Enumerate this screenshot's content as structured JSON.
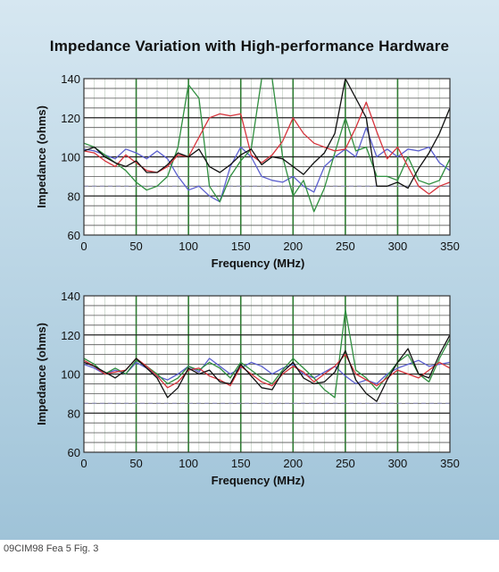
{
  "figure": {
    "title": "Impedance Variation with High-performance Hardware",
    "footer": "09CIM98 Fea 5 Fig. 3"
  },
  "colors": {
    "blue": "#5b5fcf",
    "green": "#2f8f3f",
    "red": "#d6343c",
    "black": "#111111",
    "grid": "#2e7d32",
    "dashed": "#8a8ab0",
    "panel": "#c6dcea"
  },
  "chart_data": [
    {
      "type": "line",
      "title": "Impedance Variation with High-performance Hardware",
      "xlabel": "Frequency (MHz)",
      "ylabel": "Impedance (ohms)",
      "xlim": [
        0,
        350
      ],
      "ylim": [
        60,
        140
      ],
      "x_ticks": [
        0,
        50,
        100,
        150,
        200,
        250,
        300,
        350
      ],
      "y_ticks": [
        60,
        80,
        100,
        120,
        140
      ],
      "grid": true,
      "reference_line": 85,
      "x": [
        0,
        10,
        20,
        30,
        40,
        50,
        60,
        70,
        80,
        90,
        100,
        110,
        120,
        130,
        140,
        150,
        160,
        170,
        180,
        190,
        200,
        210,
        220,
        230,
        240,
        250,
        260,
        270,
        280,
        290,
        300,
        310,
        320,
        330,
        340,
        350
      ],
      "series": [
        {
          "color": "#5b5fcf",
          "values": [
            104,
            103,
            101,
            99,
            104,
            102,
            99,
            103,
            99,
            90,
            83,
            85,
            80,
            77,
            95,
            105,
            100,
            90,
            88,
            87,
            90,
            85,
            82,
            95,
            100,
            104,
            100,
            115,
            100,
            104,
            100,
            104,
            103,
            105,
            97,
            93
          ]
        },
        {
          "color": "#2f8f3f",
          "values": [
            107,
            105,
            101,
            97,
            93,
            87,
            83,
            85,
            90,
            105,
            137,
            130,
            85,
            77,
            90,
            98,
            104,
            140,
            140,
            100,
            80,
            88,
            72,
            84,
            102,
            120,
            103,
            105,
            90,
            90,
            88,
            100,
            88,
            86,
            88,
            99
          ]
        },
        {
          "color": "#d6343c",
          "values": [
            103,
            102,
            98,
            95,
            101,
            97,
            93,
            92,
            95,
            101,
            100,
            110,
            120,
            122,
            121,
            122,
            101,
            97,
            101,
            108,
            120,
            112,
            107,
            105,
            103,
            104,
            115,
            128,
            113,
            99,
            105,
            95,
            85,
            81,
            85,
            87
          ]
        },
        {
          "color": "#111111",
          "values": [
            103,
            105,
            100,
            97,
            95,
            98,
            92,
            92,
            96,
            102,
            100,
            104,
            95,
            92,
            96,
            101,
            104,
            96,
            100,
            99,
            95,
            91,
            97,
            102,
            112,
            140,
            130,
            120,
            85,
            85,
            87,
            84,
            94,
            102,
            112,
            125
          ]
        }
      ]
    },
    {
      "type": "line",
      "title": "",
      "xlabel": "Frequency (MHz)",
      "ylabel": "Impedance (ohms)",
      "xlim": [
        0,
        350
      ],
      "ylim": [
        60,
        140
      ],
      "x_ticks": [
        0,
        50,
        100,
        150,
        200,
        250,
        300,
        350
      ],
      "y_ticks": [
        60,
        80,
        100,
        120,
        140
      ],
      "grid": true,
      "reference_line": 85,
      "x": [
        0,
        10,
        20,
        30,
        40,
        50,
        60,
        70,
        80,
        90,
        100,
        110,
        120,
        130,
        140,
        150,
        160,
        170,
        180,
        190,
        200,
        210,
        220,
        230,
        240,
        250,
        260,
        270,
        280,
        290,
        300,
        310,
        320,
        330,
        340,
        350
      ],
      "series": [
        {
          "color": "#5b5fcf",
          "values": [
            105,
            103,
            100,
            102,
            100,
            106,
            103,
            99,
            97,
            100,
            104,
            101,
            108,
            104,
            100,
            103,
            106,
            104,
            100,
            103,
            105,
            100,
            98,
            101,
            104,
            99,
            95,
            97,
            95,
            100,
            103,
            105,
            107,
            104,
            105,
            106
          ]
        },
        {
          "color": "#2f8f3f",
          "values": [
            108,
            105,
            100,
            103,
            100,
            107,
            104,
            100,
            95,
            98,
            104,
            102,
            106,
            103,
            98,
            106,
            102,
            98,
            95,
            102,
            108,
            103,
            98,
            92,
            88,
            133,
            102,
            98,
            92,
            99,
            106,
            110,
            100,
            96,
            108,
            118
          ]
        },
        {
          "color": "#d6343c",
          "values": [
            107,
            104,
            100,
            101,
            102,
            108,
            104,
            99,
            93,
            96,
            102,
            103,
            99,
            97,
            94,
            104,
            100,
            96,
            94,
            100,
            104,
            101,
            96,
            100,
            104,
            110,
            100,
            97,
            94,
            98,
            102,
            100,
            98,
            102,
            106,
            103
          ]
        },
        {
          "color": "#111111",
          "values": [
            106,
            104,
            101,
            98,
            102,
            108,
            103,
            98,
            88,
            93,
            103,
            100,
            102,
            96,
            95,
            105,
            99,
            93,
            92,
            101,
            106,
            98,
            95,
            96,
            101,
            112,
            97,
            90,
            86,
            97,
            106,
            113,
            100,
            98,
            110,
            120
          ]
        }
      ]
    }
  ]
}
